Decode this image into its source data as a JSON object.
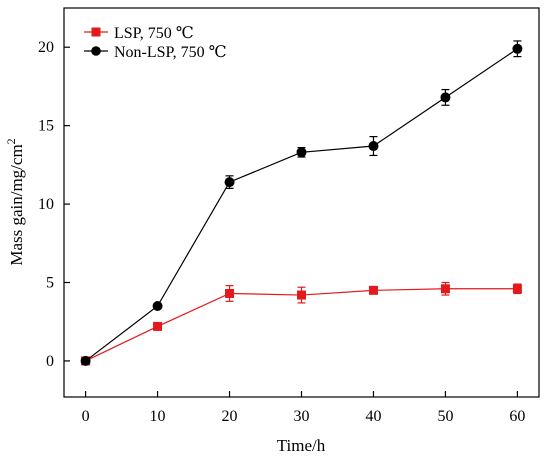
{
  "chart_data": {
    "type": "line",
    "title": "",
    "xlabel": "Time/h",
    "ylabel": "Mass gain/mg/cm",
    "ylabel_superscript": "2",
    "xlim": [
      -3,
      63
    ],
    "ylim": [
      -2.3,
      22.5
    ],
    "x_ticks": [
      0,
      10,
      20,
      30,
      40,
      50,
      60
    ],
    "y_ticks": [
      0,
      5,
      10,
      15,
      20
    ],
    "legend_position": "top-left",
    "grid": false,
    "series": [
      {
        "name": "LSP, 750 ℃",
        "marker": "square",
        "color": "#e31a1c",
        "x": [
          0,
          10,
          20,
          30,
          40,
          50,
          60
        ],
        "y": [
          0,
          2.2,
          4.3,
          4.2,
          4.5,
          4.6,
          4.6
        ],
        "error": [
          0.1,
          0.1,
          0.5,
          0.5,
          0.15,
          0.4,
          0.3
        ]
      },
      {
        "name": "Non-LSP, 750 ℃",
        "marker": "circle",
        "color": "#000000",
        "x": [
          0,
          10,
          20,
          30,
          40,
          50,
          60
        ],
        "y": [
          0,
          3.5,
          11.4,
          13.3,
          13.7,
          16.8,
          19.9
        ],
        "error": [
          0.1,
          0.1,
          0.4,
          0.3,
          0.6,
          0.5,
          0.5
        ]
      }
    ]
  }
}
